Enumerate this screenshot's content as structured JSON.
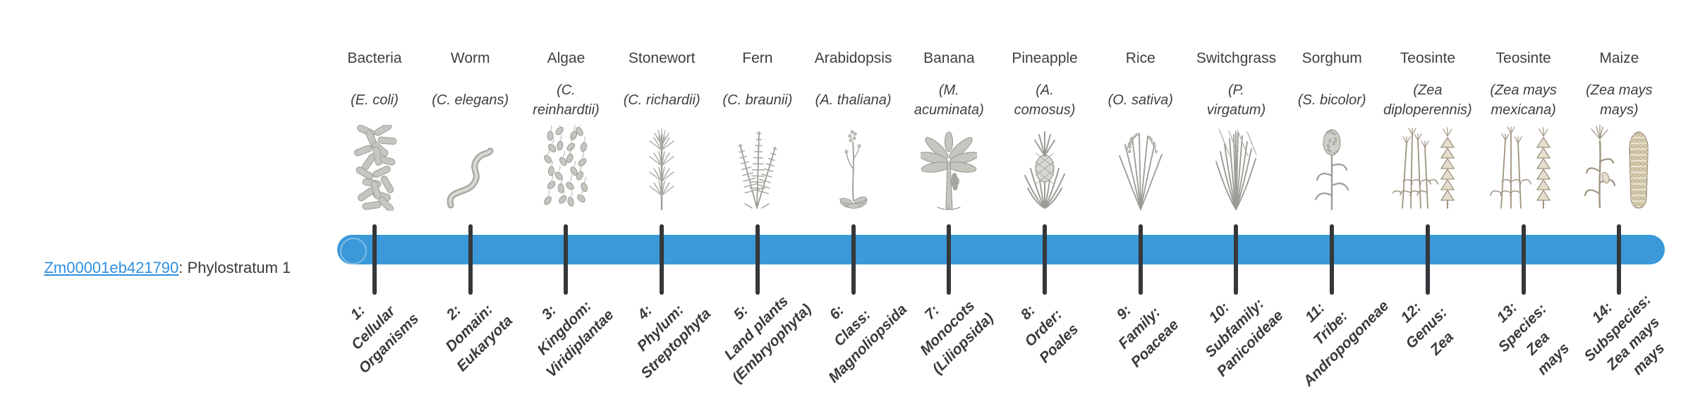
{
  "gene": {
    "id": "Zm00001eb421790",
    "separator": ": ",
    "phylostratum_label": "Phylostratum 1"
  },
  "bar": {
    "color": "#3b99d9",
    "tick_color": "#35383b",
    "marker_outline": "rgba(255,255,255,0.35)"
  },
  "link_color": "#2e8fe0",
  "organisms": [
    {
      "name": "Bacteria",
      "sci": "(E. coli)",
      "icon": "bacteria-icon"
    },
    {
      "name": "Worm",
      "sci": "(C. elegans)",
      "icon": "worm-icon"
    },
    {
      "name": "Algae",
      "sci": "(C.\nreinhardtii)",
      "icon": "algae-icon"
    },
    {
      "name": "Stonewort",
      "sci": "(C. richardii)",
      "icon": "stonewort-icon"
    },
    {
      "name": "Fern",
      "sci": "(C. braunii)",
      "icon": "fern-icon"
    },
    {
      "name": "Arabidopsis",
      "sci": "(A. thaliana)",
      "icon": "arabidopsis-icon"
    },
    {
      "name": "Banana",
      "sci": "(M.\nacuminata)",
      "icon": "banana-icon"
    },
    {
      "name": "Pineapple",
      "sci": "(A.\ncomosus)",
      "icon": "pineapple-icon"
    },
    {
      "name": "Rice",
      "sci": "(O. sativa)",
      "icon": "rice-icon"
    },
    {
      "name": "Switchgrass",
      "sci": "(P.\nvirgatum)",
      "icon": "switchgrass-icon"
    },
    {
      "name": "Sorghum",
      "sci": "(S. bicolor)",
      "icon": "sorghum-icon"
    },
    {
      "name": "Teosinte",
      "sci": "(Zea\ndiploperennis)",
      "icon": "teosinte-diplo-icon"
    },
    {
      "name": "Teosinte",
      "sci": "(Zea mays\nmexicana)",
      "icon": "teosinte-mex-icon"
    },
    {
      "name": "Maize",
      "sci": "(Zea mays\nmays)",
      "icon": "maize-icon"
    }
  ],
  "strata": [
    {
      "label": "1:\nCellular\nOrganisms"
    },
    {
      "label": "2:\nDomain:\nEukaryota"
    },
    {
      "label": "3:\nKingdom:\nViridiplantae"
    },
    {
      "label": "4:\nPhylum:\nStreptophyta"
    },
    {
      "label": "5:\nLand plants\n(Embryophyta)"
    },
    {
      "label": "6:\nClass:\nMagnoliopsida"
    },
    {
      "label": "7:\nMonocots\n(Liliopsida)"
    },
    {
      "label": "8:\nOrder:\nPoales"
    },
    {
      "label": "9:\nFamily:\nPoaceae"
    },
    {
      "label": "10:\nSubfamily:\nPanicoideae"
    },
    {
      "label": "11:\nTribe:\nAndropogoneae"
    },
    {
      "label": "12:\nGenus:\nZea"
    },
    {
      "label": "13:\nSpecies:\nZea\nmays"
    },
    {
      "label": "14:\nSubspecies:\nZea mays\nmays"
    }
  ]
}
